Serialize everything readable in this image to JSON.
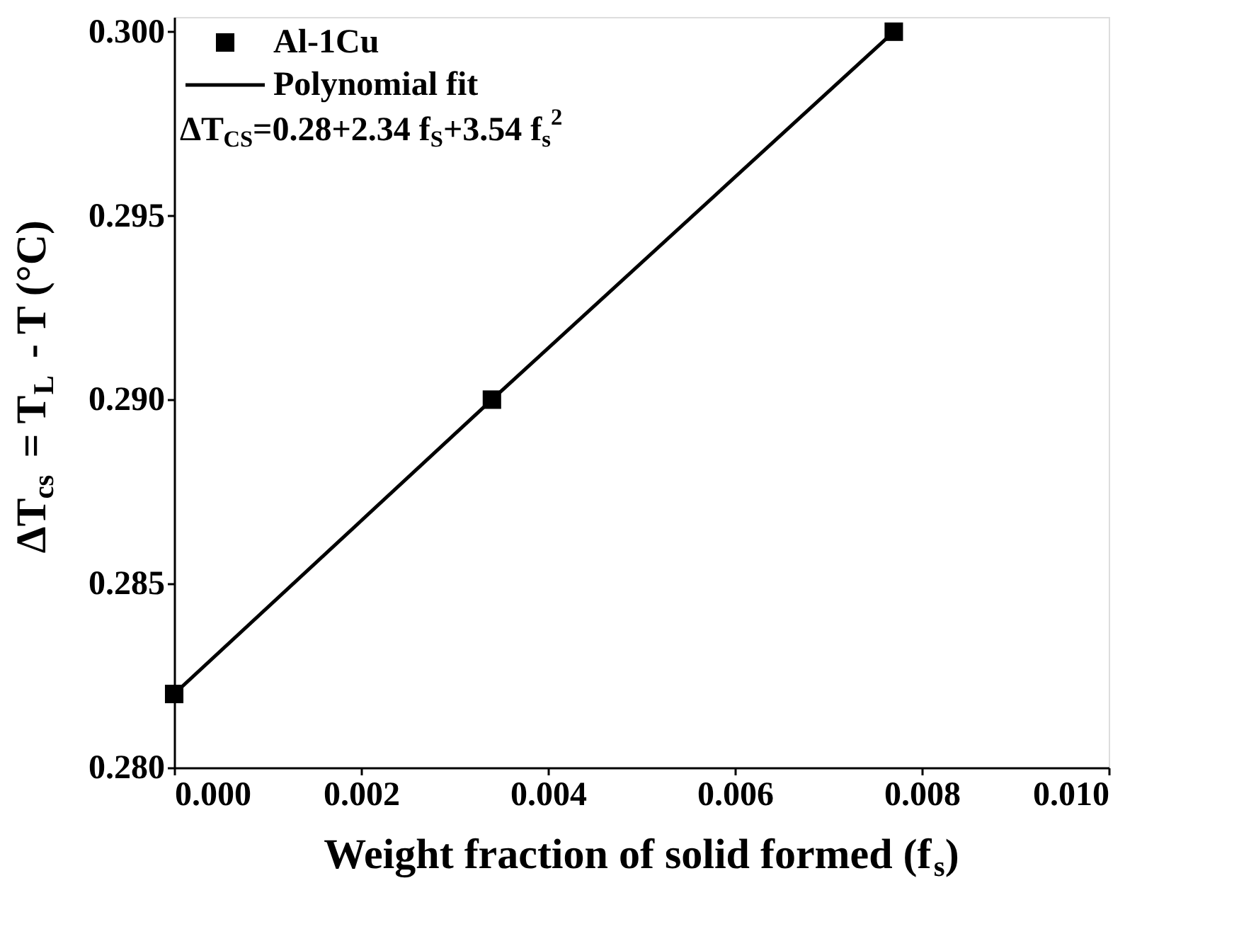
{
  "chart_data": {
    "type": "scatter",
    "xlabel": "Weight fraction of solid formed (f$_{s}$)",
    "ylabel": "ΔT$_{cs}$ = T$_{L}$ - T (°C)",
    "x": [
      0.0,
      0.0034,
      0.0077
    ],
    "series": [
      {
        "name": "Al-1Cu",
        "color": "#000000",
        "values": [
          0.282,
          0.29,
          0.3
        ]
      },
      {
        "name": "Polynomial fit",
        "type": "line",
        "marker": "none",
        "color": "#000000",
        "x": [
          0.0,
          0.0034,
          0.0077
        ],
        "values": [
          0.282,
          0.29,
          0.3
        ]
      }
    ],
    "annotations": [
      "ΔT$_{CS}$=0.28+2.34 f$_{S}$+3.54 f$_{s}$$^{2}$"
    ],
    "xlim": [
      0.0,
      0.01
    ],
    "xticks": [
      {
        "value": 0.0,
        "label": "0.000"
      },
      {
        "value": 0.002,
        "label": "0.002"
      },
      {
        "value": 0.004,
        "label": "0.004"
      },
      {
        "value": 0.006,
        "label": "0.006"
      },
      {
        "value": 0.008,
        "label": "0.008"
      },
      {
        "value": 0.01,
        "label": "0.010"
      }
    ],
    "ylim": [
      0.28,
      0.3004
    ],
    "yticks": [
      {
        "value": 0.28,
        "label": "0.280"
      },
      {
        "value": 0.285,
        "label": "0.285"
      },
      {
        "value": 0.29,
        "label": "0.290"
      },
      {
        "value": 0.295,
        "label": "0.295"
      },
      {
        "value": 0.3,
        "label": "0.300"
      }
    ],
    "marker": "square",
    "grid": false,
    "legend": "top left"
  }
}
